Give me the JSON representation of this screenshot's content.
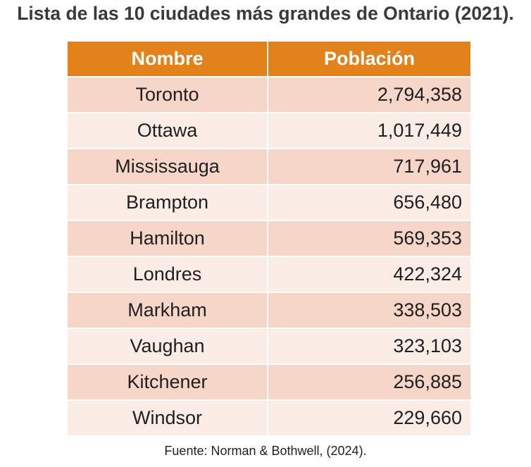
{
  "title": "Lista de las 10 ciudades más grandes de Ontario (2021).",
  "table": {
    "headers": [
      "Nombre",
      "Población"
    ],
    "rows": [
      {
        "name": "Toronto",
        "population": "2,794,358"
      },
      {
        "name": "Ottawa",
        "population": "1,017,449"
      },
      {
        "name": "Mississauga",
        "population": "717,961"
      },
      {
        "name": "Brampton",
        "population": "656,480"
      },
      {
        "name": "Hamilton",
        "population": "569,353"
      },
      {
        "name": "Londres",
        "population": "422,324"
      },
      {
        "name": "Markham",
        "population": "338,503"
      },
      {
        "name": "Vaughan",
        "population": "323,103"
      },
      {
        "name": "Kitchener",
        "population": "256,885"
      },
      {
        "name": "Windsor",
        "population": "229,660"
      }
    ]
  },
  "source": "Fuente: Norman & Bothwell, (2024).",
  "colors": {
    "header_bg": "#e3821b",
    "row_odd": "#f6d6c8",
    "row_even": "#fbece6"
  }
}
